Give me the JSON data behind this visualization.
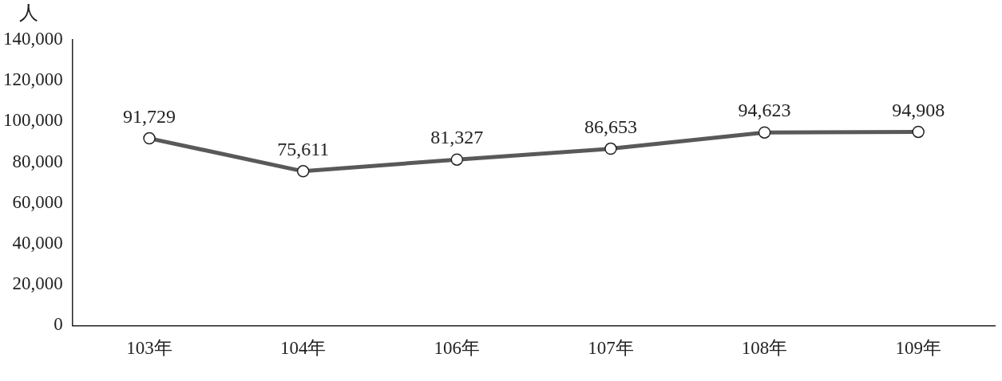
{
  "chart_data": {
    "type": "line",
    "ylabel": "人",
    "categories": [
      "103年",
      "104年",
      "106年",
      "107年",
      "108年",
      "109年"
    ],
    "series": [
      {
        "color": "#595959",
        "values": [
          91729,
          75611,
          81327,
          86653,
          94623,
          94908
        ],
        "value_labels": [
          "91,729",
          "75,611",
          "81,327",
          "86,653",
          "94,623",
          "94,908"
        ]
      }
    ],
    "ylim": [
      0,
      140000
    ],
    "yticks": [
      {
        "value": 0,
        "label": "0"
      },
      {
        "value": 20000,
        "label": "20,000"
      },
      {
        "value": 40000,
        "label": "40,000"
      },
      {
        "value": 60000,
        "label": "60,000"
      },
      {
        "value": 80000,
        "label": "80,000"
      },
      {
        "value": 100000,
        "label": "100,000"
      },
      {
        "value": 120000,
        "label": "120,000"
      },
      {
        "value": 140000,
        "label": "140,000"
      }
    ],
    "grid": false,
    "legend": false,
    "marker": "circle",
    "line_style": "solid"
  }
}
